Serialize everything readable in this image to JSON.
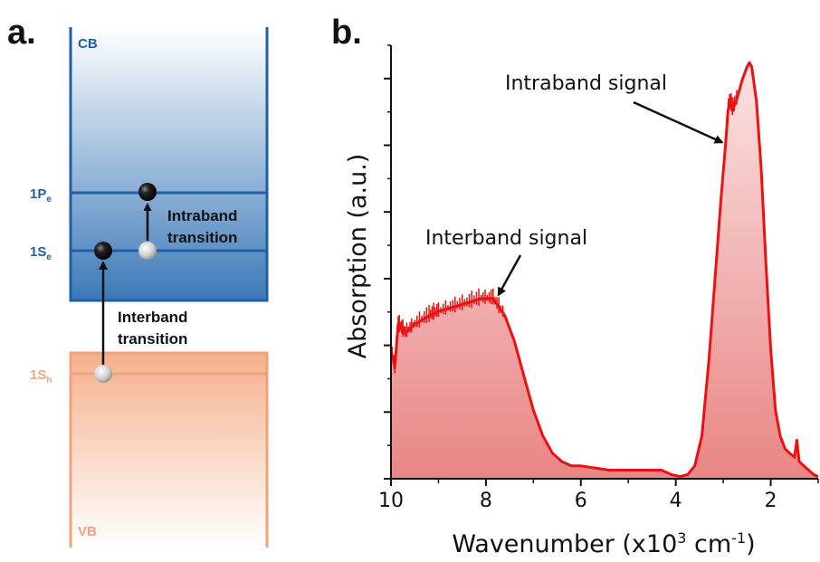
{
  "panel_a": {
    "letter": "a.",
    "bands": {
      "cb": {
        "label": "CB",
        "color": "#1f5fa8"
      },
      "vb": {
        "label": "VB",
        "color": "#f0a27a"
      }
    },
    "levels": {
      "p_e": {
        "main": "1P",
        "sub": "e"
      },
      "s_e": {
        "main": "1S",
        "sub": "e"
      },
      "s_h": {
        "main": "1S",
        "sub": "h"
      }
    },
    "intraband_label": [
      "Intraband",
      "transition"
    ],
    "interband_label": [
      "Interband",
      "transition"
    ]
  },
  "panel_b": {
    "letter": "b."
  },
  "chart_data": {
    "type": "area",
    "xlabel_main": "Wavenumber (x10",
    "xlabel_sup": "3",
    "xlabel_unit": " cm",
    "xlabel_unit_sup": "-1",
    "xlabel_close": ")",
    "ylabel": "Absorption (a.u.)",
    "xlim": [
      10,
      1
    ],
    "x_reversed": true,
    "ylim": [
      0,
      1
    ],
    "x_ticks": [
      10,
      8,
      6,
      4,
      2
    ],
    "y_tick_labels_shown": false,
    "line_color": "#ee1111",
    "fill_color_top": "#fbe2e2",
    "fill_color_bottom": "#e98585",
    "series": [
      {
        "x": [
          10.0,
          9.92,
          9.85,
          9.7,
          9.5,
          9.2,
          9.0,
          8.7,
          8.4,
          8.1,
          7.85,
          7.6,
          7.4,
          7.2,
          7.0,
          6.8,
          6.6,
          6.4,
          6.2,
          6.0,
          5.7,
          5.4,
          5.0,
          4.6,
          4.3,
          4.1,
          3.9,
          3.75,
          3.6,
          3.45,
          3.3,
          3.15,
          3.05,
          2.95,
          2.9,
          2.85,
          2.8,
          2.7,
          2.6,
          2.5,
          2.45,
          2.4,
          2.3,
          2.2,
          2.1,
          2.0,
          1.9,
          1.8,
          1.7,
          1.6,
          1.5,
          1.45,
          1.4,
          1.3,
          1.2,
          1.1,
          1.0
        ],
        "y": [
          0.3,
          0.26,
          0.36,
          0.34,
          0.36,
          0.38,
          0.39,
          0.4,
          0.41,
          0.42,
          0.42,
          0.38,
          0.32,
          0.24,
          0.16,
          0.1,
          0.06,
          0.04,
          0.03,
          0.03,
          0.025,
          0.02,
          0.02,
          0.02,
          0.02,
          0.01,
          0.005,
          0.01,
          0.03,
          0.1,
          0.28,
          0.5,
          0.65,
          0.78,
          0.86,
          0.88,
          0.86,
          0.89,
          0.93,
          0.96,
          0.97,
          0.96,
          0.88,
          0.72,
          0.5,
          0.3,
          0.16,
          0.1,
          0.07,
          0.06,
          0.05,
          0.09,
          0.04,
          0.03,
          0.02,
          0.01,
          0.005
        ]
      }
    ],
    "annotations": [
      {
        "text": "Interband signal",
        "target": [
          7.85,
          0.42
        ]
      },
      {
        "text": "Intraband signal",
        "target": [
          2.95,
          0.78
        ]
      }
    ]
  }
}
